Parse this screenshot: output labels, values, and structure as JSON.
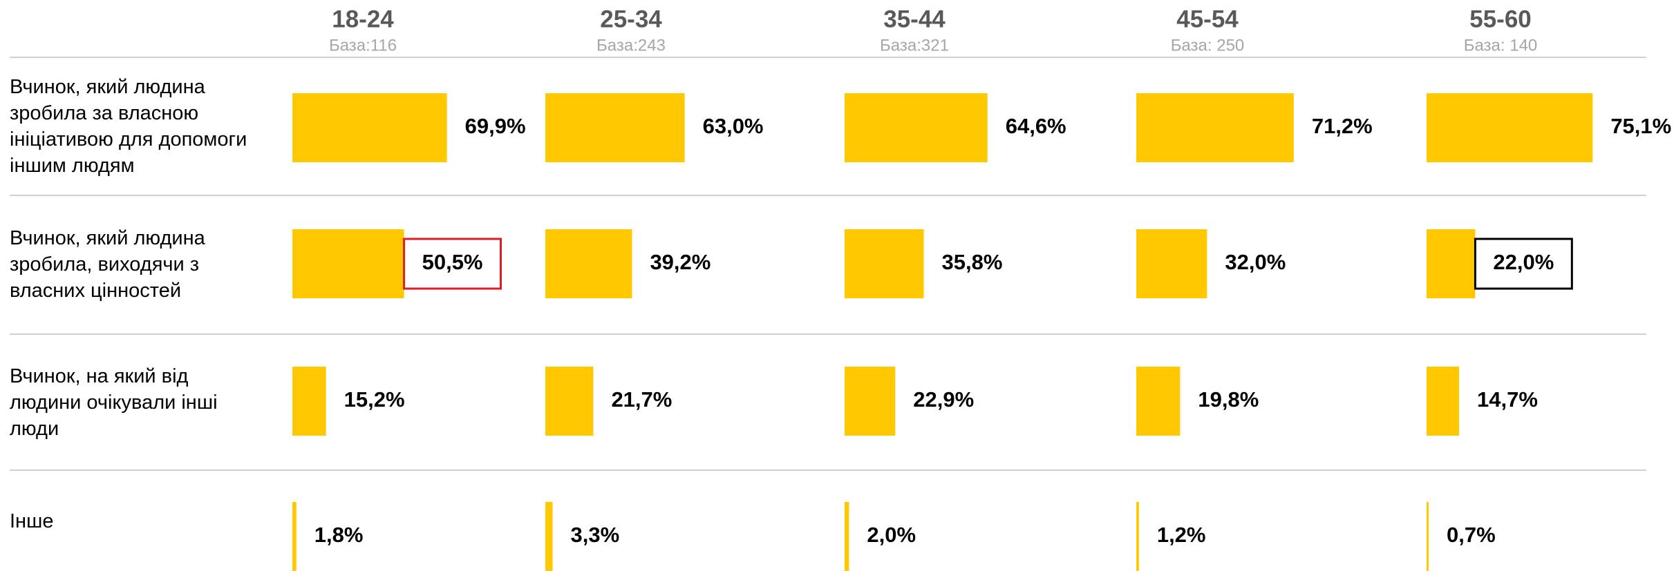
{
  "chart_data": {
    "type": "bar",
    "categories": [
      "Вчинок, який людина зробила за власною ініціативою для допомоги іншим людям",
      "Вчинок, який людина зробила, виходячи з власних цінностей",
      "Вчинок, на який від людини очікували інші люди",
      "Інше"
    ],
    "xlim": [
      0,
      100
    ],
    "color": "#ffc800",
    "series": [
      {
        "name": "18-24",
        "base": "База:116",
        "values": [
          69.9,
          50.5,
          15.2,
          1.8
        ],
        "value_labels": [
          "69,9%",
          "50,5%",
          "15,2%",
          "1,8%"
        ],
        "highlight": {
          "index": 1,
          "color": "#e01b24"
        }
      },
      {
        "name": "25-34",
        "base": "База:243",
        "values": [
          63.0,
          39.2,
          21.7,
          3.3
        ],
        "value_labels": [
          "63,0%",
          "39,2%",
          "21,7%",
          "3,3%"
        ]
      },
      {
        "name": "35-44",
        "base": "База:321",
        "values": [
          64.6,
          35.8,
          22.9,
          2.0
        ],
        "value_labels": [
          "64,6%",
          "35,8%",
          "22,9%",
          "2,0%"
        ]
      },
      {
        "name": "45-54",
        "base": "База: 250",
        "values": [
          71.2,
          32.0,
          19.8,
          1.2
        ],
        "value_labels": [
          "71,2%",
          "32,0%",
          "19,8%",
          "1,2%"
        ]
      },
      {
        "name": "55-60",
        "base": "База: 140",
        "values": [
          75.1,
          22.0,
          14.7,
          0.7
        ],
        "value_labels": [
          "75,1%",
          "22,0%",
          "14,7%",
          "0,7%"
        ],
        "highlight": {
          "index": 1,
          "color": "#000000"
        }
      }
    ]
  }
}
